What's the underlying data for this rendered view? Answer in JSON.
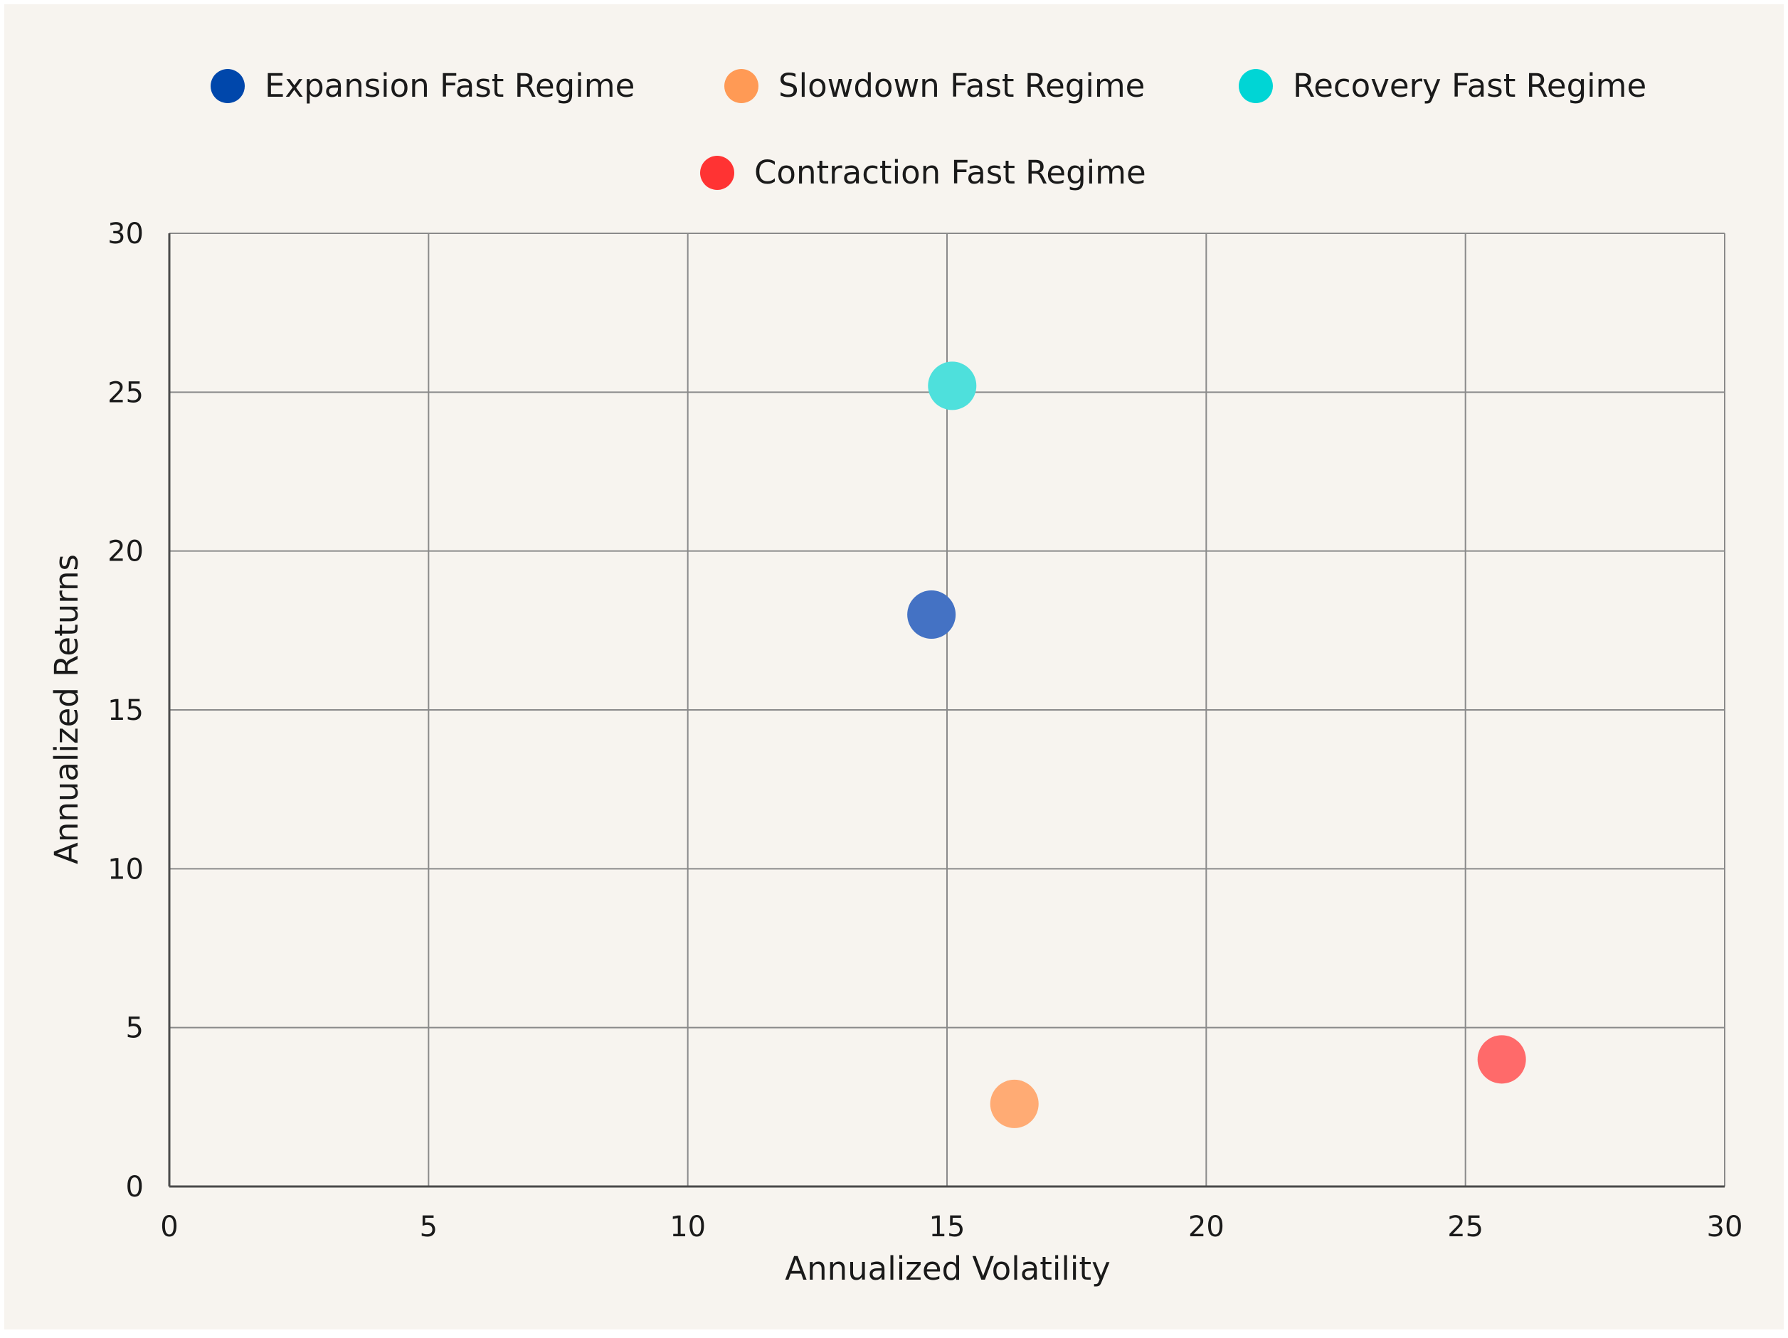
{
  "chart_data": {
    "type": "scatter",
    "title": "",
    "xlabel": "Annualized Volatility",
    "ylabel": "Annualized Returns",
    "xlim": [
      0,
      30
    ],
    "ylim": [
      0,
      30
    ],
    "xticks": [
      "0",
      "5",
      "10",
      "15",
      "20",
      "25",
      "30"
    ],
    "yticks": [
      "0",
      "5",
      "10",
      "15",
      "20",
      "25",
      "30"
    ],
    "grid": true,
    "legend_position": "top",
    "series": [
      {
        "name": "Expansion Fast Regime",
        "color": "#0047ab",
        "marker_color": "#4472c4",
        "points": [
          {
            "x": 14.7,
            "y": 18.0
          }
        ]
      },
      {
        "name": "Slowdown Fast Regime",
        "color": "#ff9a55",
        "marker_color": "#ffab74",
        "points": [
          {
            "x": 16.3,
            "y": 2.6
          }
        ]
      },
      {
        "name": "Recovery Fast Regime",
        "color": "#00d5d5",
        "marker_color": "#4ee0dc",
        "points": [
          {
            "x": 15.1,
            "y": 25.2
          }
        ]
      },
      {
        "name": "Contraction Fast Regime",
        "color": "#ff3333",
        "marker_color": "#ff6a6a",
        "points": [
          {
            "x": 25.7,
            "y": 4.0
          }
        ]
      }
    ]
  }
}
